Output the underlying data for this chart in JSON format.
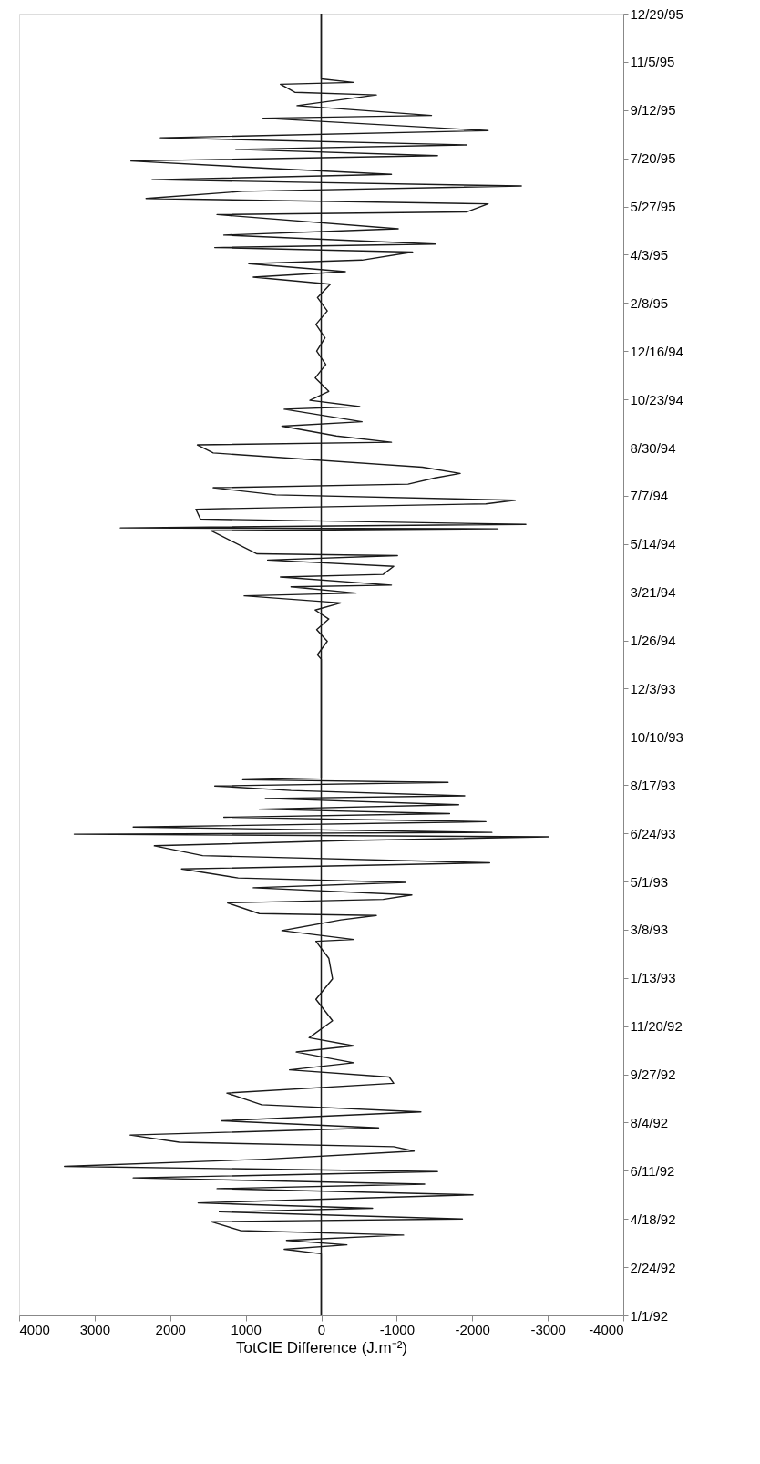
{
  "chart_data": {
    "type": "line",
    "orientation": "horizontal",
    "xlabel": "TotCIE Difference (J.m⁻²)",
    "x": [
      "1992-01-01",
      "1992-03-10",
      "1992-03-15",
      "1992-03-20",
      "1992-03-25",
      "1992-03-31",
      "1992-04-05",
      "1992-04-15",
      "1992-04-18",
      "1992-04-26",
      "1992-04-30",
      "1992-05-06",
      "1992-05-15",
      "1992-05-22",
      "1992-05-27",
      "1992-06-03",
      "1992-06-10",
      "1992-06-16",
      "1992-06-24",
      "1992-07-03",
      "1992-07-08",
      "1992-07-13",
      "1992-07-21",
      "1992-07-29",
      "1992-08-06",
      "1992-08-16",
      "1992-08-24",
      "1992-09-06",
      "1992-09-17",
      "1992-09-24",
      "1992-10-02",
      "1992-10-10",
      "1992-10-22",
      "1992-10-29",
      "1992-11-07",
      "1992-11-26",
      "1992-12-20",
      "1993-01-12",
      "1993-02-04",
      "1993-02-23",
      "1993-02-25",
      "1993-03-07",
      "1993-03-19",
      "1993-03-24",
      "1993-03-26",
      "1993-04-07",
      "1993-04-11",
      "1993-04-16",
      "1993-04-24",
      "1993-04-30",
      "1993-05-05",
      "1993-05-15",
      "1993-05-22",
      "1993-05-30",
      "1993-06-10",
      "1993-06-16",
      "1993-06-20",
      "1993-06-23",
      "1993-06-25",
      "1993-07-01",
      "1993-07-07",
      "1993-07-12",
      "1993-07-16",
      "1993-07-21",
      "1993-07-26",
      "1993-08-02",
      "1993-08-05",
      "1993-08-11",
      "1993-08-16",
      "1993-08-20",
      "1993-08-23",
      "1993-08-25",
      "1994-01-05",
      "1994-01-10",
      "1994-01-25",
      "1994-02-07",
      "1994-02-19",
      "1994-03-01",
      "1994-03-09",
      "1994-03-17",
      "1994-03-20",
      "1994-03-27",
      "1994-03-29",
      "1994-04-07",
      "1994-04-10",
      "1994-04-19",
      "1994-04-26",
      "1994-05-01",
      "1994-05-03",
      "1994-05-29",
      "1994-05-31",
      "1994-06-01",
      "1994-06-05",
      "1994-06-11",
      "1994-06-22",
      "1994-06-28",
      "1994-07-02",
      "1994-07-08",
      "1994-07-16",
      "1994-07-20",
      "1994-07-27",
      "1994-08-01",
      "1994-08-08",
      "1994-08-24",
      "1994-09-02",
      "1994-09-05",
      "1994-09-12",
      "1994-09-23",
      "1994-09-28",
      "1994-10-12",
      "1994-10-15",
      "1994-10-22",
      "1994-11-01",
      "1994-11-16",
      "1994-12-01",
      "1994-12-16",
      "1994-12-31",
      "1995-01-15",
      "1995-01-30",
      "1995-02-14",
      "1995-03-01",
      "1995-03-09",
      "1995-03-15",
      "1995-03-24",
      "1995-03-28",
      "1995-04-06",
      "1995-04-11",
      "1995-04-15",
      "1995-04-25",
      "1995-05-02",
      "1995-05-18",
      "1995-05-21",
      "1995-05-30",
      "1995-06-05",
      "1995-06-13",
      "1995-06-19",
      "1995-06-26",
      "1995-07-02",
      "1995-07-09",
      "1995-07-17",
      "1995-07-23",
      "1995-07-30",
      "1995-08-04",
      "1995-08-12",
      "1995-08-20",
      "1995-09-03",
      "1995-09-06",
      "1995-09-17",
      "1995-09-29",
      "1995-10-02",
      "1995-10-11",
      "1995-10-13",
      "1995-10-17",
      "1995-12-29"
    ],
    "series": [
      {
        "color": "#1a1a1a",
        "values": [
          0,
          0,
          490,
          -340,
          460,
          -1090,
          1070,
          1460,
          -1870,
          1350,
          -680,
          1630,
          -2010,
          1380,
          -1370,
          2490,
          -1540,
          3400,
          740,
          -1230,
          -960,
          1880,
          2530,
          -760,
          1320,
          -1320,
          790,
          1250,
          -960,
          -900,
          420,
          -430,
          330,
          -430,
          160,
          -150,
          70,
          -150,
          -100,
          70,
          -430,
          520,
          -260,
          -730,
          820,
          1240,
          -820,
          -1200,
          900,
          -1120,
          1100,
          1850,
          -2230,
          1570,
          2210,
          -370,
          -3010,
          3270,
          -2260,
          2490,
          -2180,
          1290,
          -1700,
          820,
          -1820,
          740,
          -1900,
          400,
          1410,
          -1680,
          1040,
          0,
          0,
          50,
          -80,
          60,
          -100,
          80,
          -260,
          1020,
          -460,
          400,
          -930,
          540,
          -820,
          -960,
          710,
          -1010,
          850,
          1460,
          -2340,
          2660,
          -2710,
          1600,
          1660,
          -2180,
          -2570,
          600,
          1430,
          -1150,
          -1510,
          -1840,
          -1340,
          1430,
          1640,
          -930,
          -200,
          520,
          -540,
          490,
          -510,
          150,
          -100,
          80,
          -60,
          60,
          -50,
          70,
          -80,
          50,
          -120,
          900,
          -320,
          960,
          -540,
          -1210,
          1410,
          -1510,
          1290,
          -1020,
          1380,
          -1930,
          -2210,
          2320,
          1040,
          -2650,
          2240,
          -930,
          740,
          2520,
          -1540,
          1130,
          -1930,
          2130,
          -2210,
          770,
          -1460,
          320,
          -730,
          350,
          540,
          -430,
          0,
          0
        ]
      }
    ],
    "xlim": [
      4000,
      -4000
    ],
    "xticks": [
      4000,
      3000,
      2000,
      1000,
      0,
      -1000,
      -2000,
      -3000,
      -4000
    ],
    "ylim": [
      "1992-01-01",
      "1995-12-29"
    ],
    "yticks": [
      {
        "value": "1992-01-01",
        "label": "1/1/92"
      },
      {
        "value": "1992-02-24",
        "label": "2/24/92"
      },
      {
        "value": "1992-04-18",
        "label": "4/18/92"
      },
      {
        "value": "1992-06-11",
        "label": "6/11/92"
      },
      {
        "value": "1992-08-04",
        "label": "8/4/92"
      },
      {
        "value": "1992-09-27",
        "label": "9/27/92"
      },
      {
        "value": "1992-11-20",
        "label": "11/20/92"
      },
      {
        "value": "1993-01-13",
        "label": "1/13/93"
      },
      {
        "value": "1993-03-08",
        "label": "3/8/93"
      },
      {
        "value": "1993-05-01",
        "label": "5/1/93"
      },
      {
        "value": "1993-06-24",
        "label": "6/24/93"
      },
      {
        "value": "1993-08-17",
        "label": "8/17/93"
      },
      {
        "value": "1993-10-10",
        "label": "10/10/93"
      },
      {
        "value": "1993-12-03",
        "label": "12/3/93"
      },
      {
        "value": "1994-01-26",
        "label": "1/26/94"
      },
      {
        "value": "1994-03-21",
        "label": "3/21/94"
      },
      {
        "value": "1994-05-14",
        "label": "5/14/94"
      },
      {
        "value": "1994-07-07",
        "label": "7/7/94"
      },
      {
        "value": "1994-08-30",
        "label": "8/30/94"
      },
      {
        "value": "1994-10-23",
        "label": "10/23/94"
      },
      {
        "value": "1994-12-16",
        "label": "12/16/94"
      },
      {
        "value": "1995-02-08",
        "label": "2/8/95"
      },
      {
        "value": "1995-04-03",
        "label": "4/3/95"
      },
      {
        "value": "1995-05-27",
        "label": "5/27/95"
      },
      {
        "value": "1995-07-20",
        "label": "7/20/95"
      },
      {
        "value": "1995-09-12",
        "label": "9/12/95"
      },
      {
        "value": "1995-11-05",
        "label": "11/5/95"
      },
      {
        "value": "1995-12-29",
        "label": "12/29/95"
      }
    ],
    "ref_lines": [
      {
        "axis": "x",
        "value": 0,
        "color": "#1a1a1a"
      }
    ],
    "grid": false
  }
}
